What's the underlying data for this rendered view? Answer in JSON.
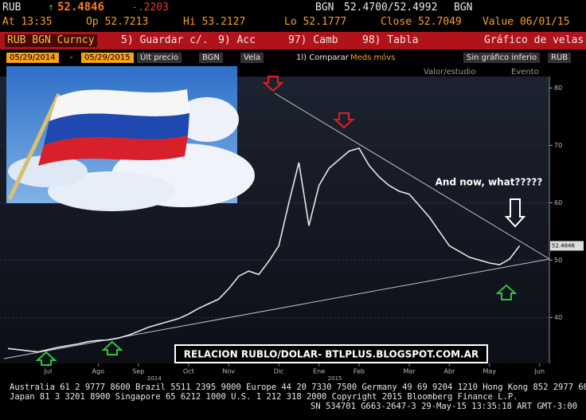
{
  "terminal": {
    "row1": [
      "RUB",
      "↑",
      "52.4846",
      "-.2203",
      "BGN",
      "52.4700/52.4992",
      "BGN"
    ],
    "row2": [
      "At 13:35",
      "Op 52.7213",
      "Hi 53.2127",
      "Lo 52.1777",
      "Close 52.7049",
      "Value 06/01/15"
    ],
    "menu": [
      "RUB BGN Curncy",
      "5) Guardar c/.",
      "9) Acc",
      "97) Camb",
      "98) Tabla",
      "Gráfico de velas"
    ],
    "controls": [
      "05/29/2014",
      "-",
      "05/29/2015",
      "Últ precio",
      "BGN",
      "Vela",
      "1l) Comparar",
      "Meds móvs",
      "Sin gráfico inferio",
      "RUB"
    ],
    "tools": [
      "Valor/estudio",
      "Evento"
    ],
    "footer": [
      "Australia 61 2 9777 8600 Brazil 5511 2395 9000 Europe 44 20 7330 7500 Germany 49 69 9204 1210 Hong Kong 852 2977 6000",
      "Japan 81 3 3201 8900        Singapore 65 6212 1000        U.S. 1 212 318 2000        Copyright 2015 Bloomberg Finance L.P.",
      "SN 534701 G663-2647-3 29-May-15 13:35:18 ART  GMT-3:00"
    ]
  },
  "chart_data": {
    "type": "line",
    "categories": [
      null,
      null,
      null,
      null,
      "Jul",
      null,
      null,
      null,
      null,
      "Ago",
      null,
      null,
      null,
      "Sep",
      null,
      null,
      null,
      null,
      "Oct",
      null,
      null,
      null,
      "Nov",
      null,
      null,
      null,
      null,
      "Dic",
      null,
      null,
      null,
      "Ene",
      null,
      null,
      null,
      "Feb",
      null,
      null,
      null,
      null,
      "Mar",
      null,
      null,
      null,
      "Abr",
      null,
      null,
      null,
      "May",
      null,
      null,
      null,
      null,
      "Jun"
    ],
    "year_labels": [
      "2014",
      "2015"
    ],
    "series": [
      {
        "name": "RUB BGN Curncy",
        "color": "#e6e6e6",
        "values": [
          34.6,
          34.4,
          34.2,
          34.0,
          34.4,
          34.8,
          35.1,
          35.4,
          35.8,
          36.0,
          36.1,
          36.4,
          36.9,
          37.6,
          38.3,
          38.8,
          39.3,
          39.8,
          40.6,
          41.6,
          42.4,
          43.2,
          45.0,
          47.2,
          48.1,
          47.5,
          49.8,
          52.5,
          60.0,
          67.0,
          56.0,
          63.0,
          66.0,
          67.5,
          69.0,
          69.5,
          66.5,
          64.5,
          63.0,
          62.0,
          61.5,
          59.5,
          57.5,
          55.0,
          52.5,
          51.5,
          50.5,
          50.0,
          49.5,
          49.2,
          50.2,
          52.5,
          null,
          null
        ]
      }
    ],
    "last_price": {
      "value": 52.4846,
      "label": "52.4846"
    },
    "ylim": [
      32,
      82
    ],
    "yticks": [
      40,
      50,
      60,
      70,
      80
    ],
    "annotations": [
      "And now, what?????",
      "RELACION RUBLO/DOLAR- BTLPLUS.BLOGSPOT.COM.AR"
    ]
  }
}
